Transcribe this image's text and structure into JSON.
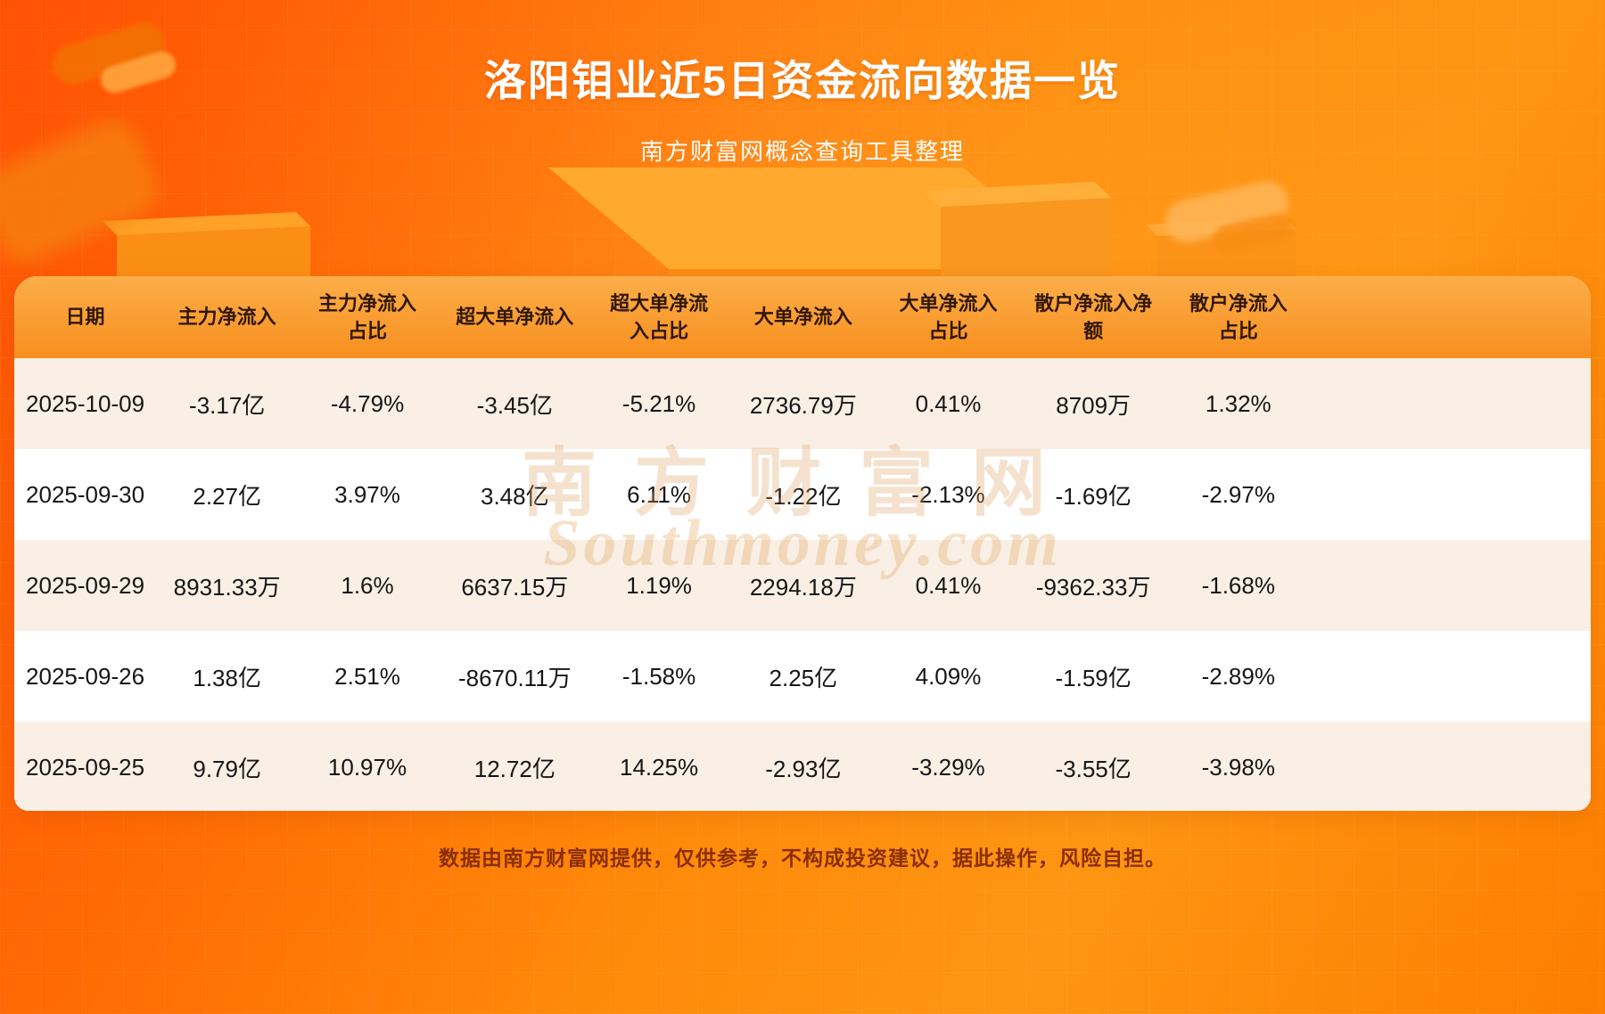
{
  "header": {
    "title": "洛阳钼业近5日资金流向数据一览",
    "subtitle": "南方财富网概念查询工具整理"
  },
  "table": {
    "columns": [
      "日期",
      "主力净流入",
      "主力净流入占比",
      "超大单净流入",
      "超大单净流入占比",
      "大单净流入",
      "大单净流入占比",
      "散户净流入净额",
      "散户净流入占比"
    ],
    "rows": [
      [
        "2025-10-09",
        "-3.17亿",
        "-4.79%",
        "-3.45亿",
        "-5.21%",
        "2736.79万",
        "0.41%",
        "8709万",
        "1.32%"
      ],
      [
        "2025-09-30",
        "2.27亿",
        "3.97%",
        "3.48亿",
        "6.11%",
        "-1.22亿",
        "-2.13%",
        "-1.69亿",
        "-2.97%"
      ],
      [
        "2025-09-29",
        "8931.33万",
        "1.6%",
        "6637.15万",
        "1.19%",
        "2294.18万",
        "0.41%",
        "-9362.33万",
        "-1.68%"
      ],
      [
        "2025-09-26",
        "1.38亿",
        "2.51%",
        "-8670.11万",
        "-1.58%",
        "2.25亿",
        "4.09%",
        "-1.59亿",
        "-2.89%"
      ],
      [
        "2025-09-25",
        "9.79亿",
        "10.97%",
        "12.72亿",
        "14.25%",
        "-2.93亿",
        "-3.29%",
        "-3.55亿",
        "-3.98%"
      ]
    ]
  },
  "watermark": {
    "line1": "南方财富网",
    "line2": "Southmoney.com"
  },
  "footer": {
    "disclaimer": "数据由南方财富网提供，仅供参考，不构成投资建议，据此操作，风险自担。"
  },
  "colors": {
    "background_top": "#ff5205",
    "background_bottom": "#fd7e00",
    "table_header": "#f78f1e",
    "row_stripe": "#f9efe5",
    "header_text": "#301703",
    "title_text": "#ffffff",
    "disclaimer_text": "#8a2e00"
  }
}
